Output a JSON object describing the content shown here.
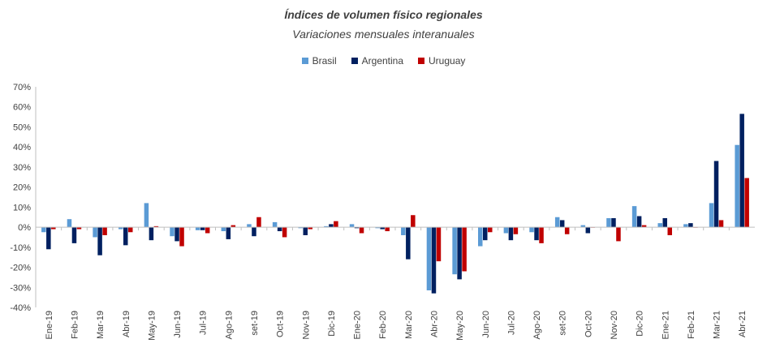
{
  "chart_data": {
    "type": "bar",
    "title": "Índices de volumen físico regionales",
    "subtitle": "Variaciones mensuales interanuales",
    "xlabel": "",
    "ylabel": "",
    "ylim": [
      -40,
      70
    ],
    "yticks": [
      70,
      60,
      50,
      40,
      30,
      20,
      10,
      0,
      -10,
      -20,
      -30,
      -40
    ],
    "ytick_labels": [
      "70%",
      "60%",
      "50%",
      "40%",
      "30%",
      "20%",
      "10%",
      "0%",
      "-10%",
      "-20%",
      "-30%",
      "-40%"
    ],
    "legend_position": "top-center",
    "categories": [
      "Ene-19",
      "Feb-19",
      "Mar-19",
      "Abr-19",
      "May-19",
      "Jun-19",
      "Jul-19",
      "Ago-19",
      "set-19",
      "Oct-19",
      "Nov-19",
      "Dic-19",
      "Ene-20",
      "Feb-20",
      "Mar-20",
      "Abr-20",
      "May-20",
      "Jun-20",
      "Jul-20",
      "Ago-20",
      "set-20",
      "Oct-20",
      "Nov-20",
      "Dic-20",
      "Ene-21",
      "Feb-21",
      "Mar-21",
      "Abr-21"
    ],
    "series": [
      {
        "name": "Brasil",
        "color": "#5b9bd5",
        "values": [
          -2.5,
          4,
          -5,
          -1,
          12,
          -4.5,
          -1.5,
          -2,
          1.5,
          2.5,
          -0.5,
          0.5,
          1.5,
          -0.5,
          -4,
          -31.5,
          -23.5,
          -9.5,
          -3,
          -2.5,
          5,
          1,
          4.5,
          10.5,
          2,
          1.5,
          12,
          41
        ]
      },
      {
        "name": "Argentina",
        "color": "#002060",
        "values": [
          -11,
          -8,
          -14,
          -9,
          -6.5,
          -7,
          -1.5,
          -6,
          -4.5,
          -2,
          -4,
          1.5,
          -0.5,
          -1,
          -16,
          -33,
          -26,
          -6.5,
          -6.5,
          -6.5,
          3.5,
          -3,
          4.5,
          5.5,
          4.5,
          2,
          33,
          56.5
        ]
      },
      {
        "name": "Uruguay",
        "color": "#c00000",
        "values": [
          -1,
          -1,
          -4,
          -2.5,
          0.5,
          -9.5,
          -3,
          1,
          5,
          -5,
          -1,
          3,
          -3,
          -2,
          6,
          -17,
          -22,
          -2.5,
          -3.5,
          -8,
          -3.5,
          0,
          -7,
          1,
          -4,
          0,
          3.5,
          24.5
        ]
      }
    ]
  }
}
